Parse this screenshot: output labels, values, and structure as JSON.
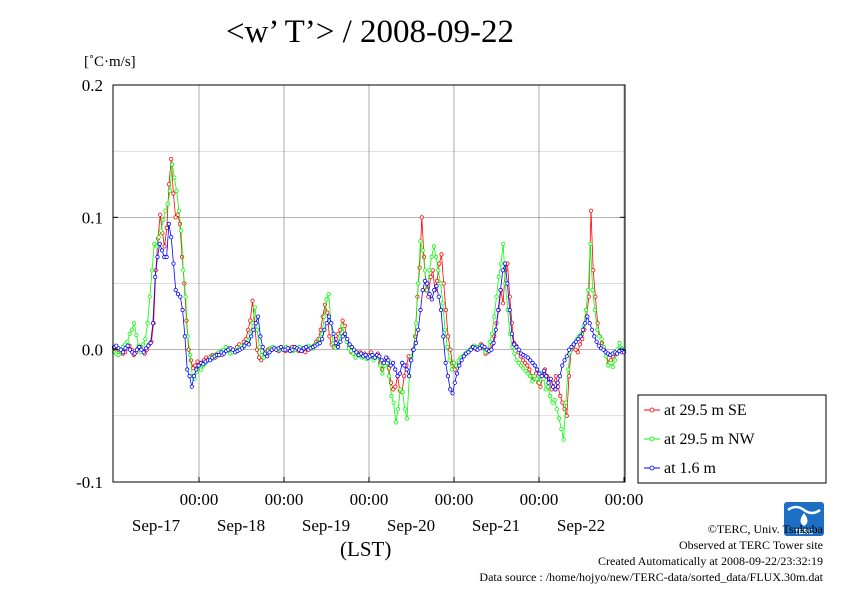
{
  "title": "<w’ T’> / 2008-09-22",
  "credits": {
    "copyright": "©TERC, Univ. Tsukuba",
    "observed": "Observed at TERC Tower site",
    "created": "Created Automatically at 2008-09-22/23:32:19",
    "source": "Data source : /home/hojyo/new/TERC-data/sorted_data/FLUX.30m.dat"
  },
  "logo": {
    "text": "TERC"
  },
  "chart_data": {
    "type": "line",
    "title": "<w’ T’> / 2008-09-22",
    "ylabel": "[˚C·m/s]",
    "xlabel": "(LST)",
    "ylim": [
      -0.1,
      0.2
    ],
    "xlim": [
      0,
      6
    ],
    "y_ticks": [
      "-0.1",
      "0.0",
      "0.1",
      "0.2"
    ],
    "y_tick_values": [
      -0.1,
      0.0,
      0.1,
      0.2
    ],
    "x_tick_labels": [
      {
        "x": 1,
        "time": "00:00",
        "date": "Sep-17"
      },
      {
        "x": 2,
        "time": "00:00",
        "date": "Sep-18"
      },
      {
        "x": 3,
        "time": "00:00",
        "date": "Sep-19"
      },
      {
        "x": 4,
        "time": "00:00",
        "date": "Sep-20"
      },
      {
        "x": 5,
        "time": "00:00",
        "date": "Sep-21"
      },
      {
        "x": 6,
        "time": "00:00",
        "date": "Sep-22"
      }
    ],
    "grid": true,
    "x_units_note": "x in days from plot start (day boundaries at 00:00 LST); samples every 30 min",
    "legend": {
      "position": "right"
    },
    "series": [
      {
        "name": "at 29.5 m SE",
        "color": "#ff0000",
        "values": [
          0.001,
          0.002,
          0.0,
          -0.001,
          -0.003,
          -0.002,
          0.001,
          0.003,
          0.0,
          -0.004,
          -0.002,
          0.001,
          0.002,
          -0.001,
          -0.003,
          0.0,
          0.004,
          0.006,
          0.02,
          0.06,
          0.084,
          0.102,
          0.088,
          0.078,
          0.092,
          0.125,
          0.144,
          0.118,
          0.1,
          0.102,
          0.095,
          0.07,
          0.05,
          0.022,
          0.0,
          -0.008,
          -0.014,
          -0.012,
          -0.009,
          -0.011,
          -0.01,
          -0.008,
          -0.006,
          -0.007,
          -0.005,
          -0.004,
          -0.006,
          -0.003,
          -0.002,
          -0.004,
          -0.001,
          0.0,
          0.001,
          -0.002,
          0.0,
          -0.001,
          0.002,
          0.004,
          0.002,
          0.006,
          0.008,
          0.015,
          0.022,
          0.037,
          0.02,
          0.0,
          -0.006,
          -0.008,
          -0.004,
          -0.002,
          0.0,
          0.001,
          0.0,
          0.001,
          0.0,
          -0.001,
          0.001,
          0.0,
          -0.001,
          0.0,
          0.001,
          0.002,
          0.001,
          0.0,
          -0.001,
          0.0,
          0.001,
          -0.002,
          0.001,
          0.002,
          0.001,
          0.003,
          0.006,
          0.008,
          0.015,
          0.025,
          0.034,
          0.028,
          0.01,
          0.004,
          0.002,
          0.008,
          0.012,
          0.015,
          0.022,
          0.018,
          0.006,
          0.002,
          -0.002,
          -0.003,
          -0.004,
          -0.003,
          -0.002,
          -0.004,
          -0.003,
          -0.005,
          -0.004,
          -0.002,
          -0.006,
          -0.005,
          -0.003,
          -0.01,
          -0.015,
          -0.008,
          -0.006,
          -0.014,
          -0.025,
          -0.03,
          -0.028,
          -0.02,
          -0.031,
          -0.032,
          -0.02,
          -0.012,
          -0.005,
          -0.008,
          0.0,
          0.01,
          0.04,
          0.062,
          0.1,
          0.07,
          0.045,
          0.04,
          0.055,
          0.06,
          0.045,
          0.052,
          0.065,
          0.072,
          0.05,
          0.03,
          0.01,
          0.0,
          -0.01,
          -0.015,
          -0.012,
          -0.01,
          -0.008,
          -0.005,
          -0.003,
          -0.002,
          0.0,
          0.002,
          0.001,
          0.0,
          0.002,
          0.004,
          0.001,
          -0.003,
          -0.002,
          0.0,
          0.004,
          0.01,
          0.02,
          0.03,
          0.045,
          0.035,
          0.06,
          0.065,
          0.04,
          0.02,
          0.005,
          0.003,
          -0.002,
          -0.005,
          -0.008,
          -0.01,
          -0.012,
          -0.015,
          -0.02,
          -0.022,
          -0.018,
          -0.025,
          -0.028,
          -0.02,
          -0.015,
          -0.02,
          -0.022,
          -0.03,
          -0.025,
          -0.02,
          -0.028,
          -0.035,
          -0.04,
          -0.045,
          -0.05,
          -0.02,
          0.0,
          0.003,
          0.0,
          -0.002,
          0.004,
          0.008,
          0.015,
          0.025,
          0.04,
          0.105,
          0.06,
          0.04,
          0.02,
          0.01,
          0.005,
          0.0,
          -0.005,
          -0.01,
          -0.008,
          -0.005,
          -0.003,
          -0.002,
          0.0,
          -0.002,
          -0.001
        ]
      },
      {
        "name": "at 29.5 m NW",
        "color": "#00ff00",
        "values": [
          -0.002,
          -0.003,
          -0.004,
          -0.001,
          0.002,
          0.004,
          0.006,
          0.012,
          0.015,
          0.02,
          0.011,
          0.003,
          -0.002,
          0.004,
          0.008,
          0.02,
          0.04,
          0.06,
          0.08,
          0.078,
          0.085,
          0.09,
          0.098,
          0.105,
          0.11,
          0.12,
          0.14,
          0.13,
          0.12,
          0.105,
          0.09,
          0.06,
          0.04,
          0.01,
          -0.004,
          -0.02,
          -0.022,
          -0.017,
          -0.012,
          -0.015,
          -0.012,
          -0.01,
          -0.008,
          -0.006,
          -0.007,
          -0.004,
          -0.005,
          -0.002,
          -0.001,
          0.0,
          0.002,
          0.0,
          -0.003,
          -0.002,
          0.0,
          -0.001,
          0.001,
          0.003,
          0.002,
          0.005,
          0.007,
          0.012,
          0.02,
          0.032,
          0.015,
          0.002,
          -0.004,
          -0.006,
          -0.003,
          -0.001,
          0.001,
          0.002,
          0.001,
          0.0,
          0.0,
          0.001,
          0.0,
          0.002,
          0.001,
          0.0,
          -0.001,
          0.0,
          0.001,
          0.002,
          0.0,
          0.001,
          0.002,
          0.003,
          0.002,
          0.001,
          0.004,
          0.005,
          0.008,
          0.012,
          0.025,
          0.038,
          0.042,
          0.02,
          0.005,
          0.001,
          0.003,
          0.01,
          0.018,
          0.012,
          0.006,
          0.001,
          -0.001,
          -0.003,
          -0.006,
          -0.004,
          -0.005,
          -0.006,
          -0.004,
          -0.007,
          -0.006,
          -0.004,
          -0.008,
          -0.006,
          -0.005,
          -0.012,
          -0.018,
          -0.012,
          -0.01,
          -0.02,
          -0.035,
          -0.04,
          -0.055,
          -0.045,
          -0.03,
          -0.032,
          -0.045,
          -0.052,
          -0.02,
          -0.005,
          0.0,
          0.02,
          0.05,
          0.082,
          0.075,
          0.06,
          0.045,
          0.06,
          0.07,
          0.078,
          0.07,
          0.06,
          0.05,
          0.035,
          0.015,
          0.002,
          -0.008,
          -0.015,
          -0.01,
          -0.012,
          -0.008,
          -0.006,
          -0.005,
          -0.003,
          -0.002,
          0.0,
          0.001,
          0.003,
          0.002,
          0.001,
          0.003,
          0.002,
          -0.002,
          0.0,
          0.006,
          0.012,
          0.025,
          0.04,
          0.055,
          0.065,
          0.08,
          0.05,
          0.03,
          0.012,
          0.002,
          -0.003,
          -0.008,
          -0.01,
          -0.012,
          -0.014,
          -0.016,
          -0.018,
          -0.02,
          -0.024,
          -0.02,
          -0.022,
          -0.025,
          -0.018,
          -0.022,
          -0.03,
          -0.028,
          -0.035,
          -0.04,
          -0.038,
          -0.045,
          -0.052,
          -0.06,
          -0.068,
          -0.04,
          -0.015,
          -0.002,
          0.002,
          0.005,
          0.008,
          0.01,
          0.012,
          0.018,
          0.03,
          0.045,
          0.08,
          0.045,
          0.03,
          0.015,
          0.01,
          0.008,
          0.002,
          -0.005,
          -0.012,
          -0.01,
          -0.013,
          -0.008,
          0.0,
          0.005,
          0.001,
          0.0
        ]
      },
      {
        "name": "at 1.6 m",
        "color": "#0000ff",
        "values": [
          0.002,
          0.003,
          0.001,
          0.0,
          -0.002,
          0.001,
          0.003,
          0.0,
          -0.002,
          -0.003,
          0.0,
          0.002,
          0.0,
          -0.002,
          0.001,
          0.003,
          0.005,
          0.02,
          0.055,
          0.07,
          0.08,
          0.075,
          0.07,
          0.07,
          0.095,
          0.085,
          0.065,
          0.045,
          0.042,
          0.04,
          0.03,
          0.01,
          -0.015,
          -0.02,
          -0.028,
          -0.02,
          -0.015,
          -0.012,
          -0.01,
          -0.011,
          -0.009,
          -0.008,
          -0.008,
          -0.006,
          -0.005,
          -0.004,
          -0.004,
          -0.002,
          -0.003,
          -0.001,
          0.0,
          0.001,
          0.0,
          -0.002,
          -0.001,
          0.0,
          0.001,
          0.003,
          0.005,
          0.004,
          0.01,
          0.015,
          0.02,
          0.025,
          0.01,
          0.002,
          -0.003,
          -0.005,
          -0.002,
          0.0,
          0.001,
          0.0,
          0.001,
          0.002,
          0.0,
          0.0,
          0.001,
          -0.001,
          0.0,
          0.002,
          0.001,
          0.0,
          -0.001,
          0.001,
          0.002,
          0.0,
          0.001,
          0.002,
          0.003,
          0.004,
          0.005,
          0.008,
          0.015,
          0.02,
          0.025,
          0.02,
          0.012,
          0.005,
          0.002,
          0.006,
          0.01,
          0.012,
          0.008,
          0.004,
          0.002,
          0.0,
          -0.002,
          -0.004,
          -0.003,
          -0.005,
          -0.004,
          -0.006,
          -0.005,
          -0.004,
          -0.006,
          -0.004,
          -0.005,
          -0.008,
          -0.01,
          -0.006,
          -0.008,
          -0.012,
          -0.01,
          -0.015,
          -0.02,
          -0.018,
          -0.01,
          -0.012,
          -0.015,
          -0.02,
          -0.008,
          0.0,
          0.005,
          0.015,
          0.03,
          0.045,
          0.052,
          0.05,
          0.042,
          0.038,
          0.045,
          0.048,
          0.04,
          0.03,
          0.01,
          -0.01,
          -0.02,
          -0.03,
          -0.033,
          -0.025,
          -0.018,
          -0.012,
          -0.008,
          -0.005,
          -0.003,
          -0.002,
          0.0,
          0.002,
          0.001,
          0.0,
          0.001,
          0.003,
          0.002,
          0.0,
          -0.001,
          0.0,
          0.005,
          0.015,
          0.03,
          0.045,
          0.06,
          0.065,
          0.05,
          0.03,
          0.012,
          0.004,
          0.002,
          0.0,
          -0.003,
          -0.004,
          -0.005,
          -0.006,
          -0.008,
          -0.01,
          -0.012,
          -0.015,
          -0.018,
          -0.02,
          -0.016,
          -0.02,
          -0.025,
          -0.022,
          -0.028,
          -0.03,
          -0.025,
          -0.02,
          -0.012,
          -0.008,
          -0.005,
          0.0,
          0.002,
          0.004,
          0.006,
          0.008,
          0.01,
          0.015,
          0.02,
          0.025,
          0.02,
          0.015,
          0.01,
          0.006,
          0.003,
          0.001,
          0.0,
          -0.002,
          -0.003,
          -0.004,
          -0.003,
          -0.002,
          -0.003,
          -0.001,
          0.0,
          -0.002
        ]
      }
    ]
  }
}
